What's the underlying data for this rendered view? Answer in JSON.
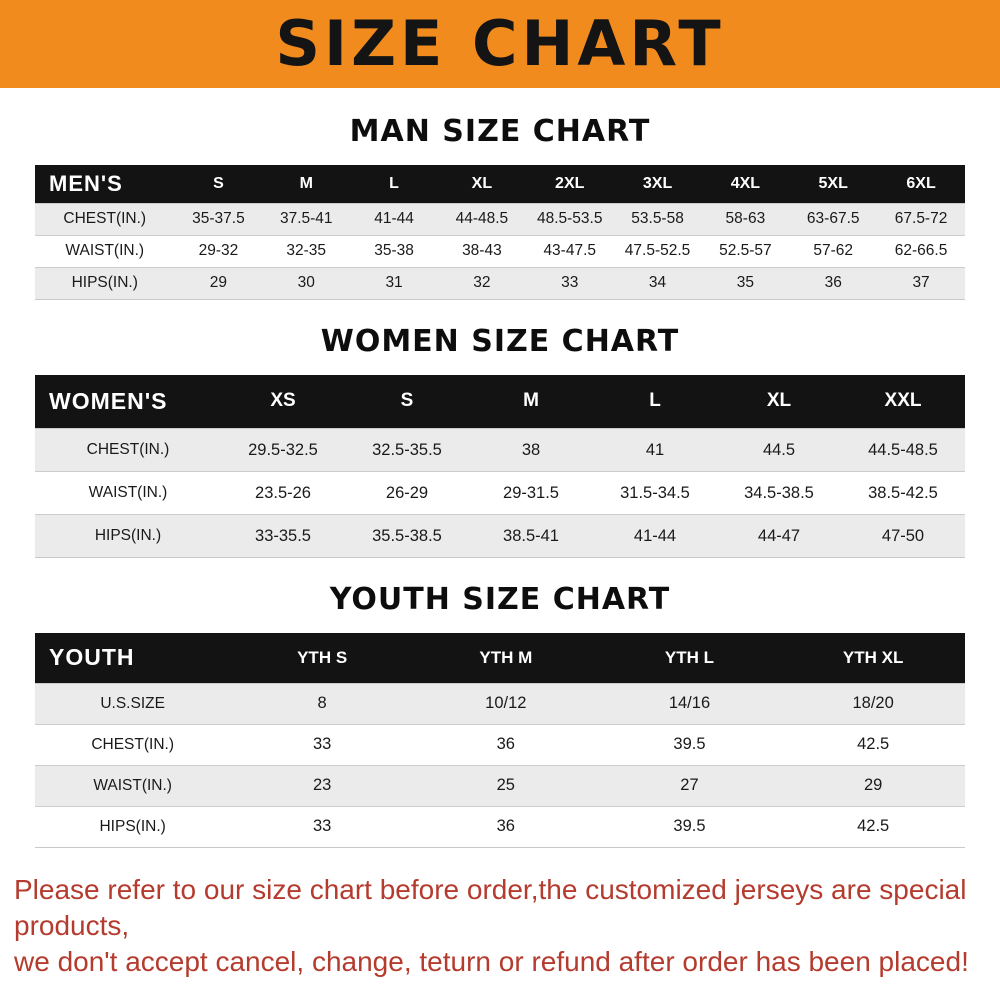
{
  "banner": {
    "title": "SIZE CHART",
    "bg_color": "#f28b1e",
    "text_color": "#141414"
  },
  "tables": [
    {
      "title": "MAN SIZE CHART",
      "header_label": "MEN'S",
      "columns": [
        "S",
        "M",
        "L",
        "XL",
        "2XL",
        "3XL",
        "4XL",
        "5XL",
        "6XL"
      ],
      "rows": [
        {
          "label": "CHEST(IN.)",
          "values": [
            "35-37.5",
            "37.5-41",
            "41-44",
            "44-48.5",
            "48.5-53.5",
            "53.5-58",
            "58-63",
            "63-67.5",
            "67.5-72"
          ]
        },
        {
          "label": "WAIST(IN.)",
          "values": [
            "29-32",
            "32-35",
            "35-38",
            "38-43",
            "43-47.5",
            "47.5-52.5",
            "52.5-57",
            "57-62",
            "62-66.5"
          ]
        },
        {
          "label": "HIPS(IN.)",
          "values": [
            "29",
            "30",
            "31",
            "32",
            "33",
            "34",
            "35",
            "36",
            "37"
          ]
        }
      ]
    },
    {
      "title": "WOMEN SIZE CHART",
      "header_label": "WOMEN'S",
      "columns": [
        "XS",
        "S",
        "M",
        "L",
        "XL",
        "XXL"
      ],
      "rows": [
        {
          "label": "CHEST(IN.)",
          "values": [
            "29.5-32.5",
            "32.5-35.5",
            "38",
            "41",
            "44.5",
            "44.5-48.5"
          ]
        },
        {
          "label": "WAIST(IN.)",
          "values": [
            "23.5-26",
            "26-29",
            "29-31.5",
            "31.5-34.5",
            "34.5-38.5",
            "38.5-42.5"
          ]
        },
        {
          "label": "HIPS(IN.)",
          "values": [
            "33-35.5",
            "35.5-38.5",
            "38.5-41",
            "41-44",
            "44-47",
            "47-50"
          ]
        }
      ]
    },
    {
      "title": "YOUTH SIZE CHART",
      "header_label": "YOUTH",
      "columns": [
        "YTH S",
        "YTH M",
        "YTH L",
        "YTH XL"
      ],
      "rows": [
        {
          "label": "U.S.SIZE",
          "values": [
            "8",
            "10/12",
            "14/16",
            "18/20"
          ]
        },
        {
          "label": "CHEST(IN.)",
          "values": [
            "33",
            "36",
            "39.5",
            "42.5"
          ]
        },
        {
          "label": "WAIST(IN.)",
          "values": [
            "23",
            "25",
            "27",
            "29"
          ]
        },
        {
          "label": "HIPS(IN.)",
          "values": [
            "33",
            "36",
            "39.5",
            "42.5"
          ]
        }
      ]
    }
  ],
  "footer": {
    "line1": "Please refer to our size chart before order,the customized jerseys are special products,",
    "line2": "we don't accept cancel, change, teturn or refund after order has been placed!",
    "text_color": "#b43b2e"
  }
}
